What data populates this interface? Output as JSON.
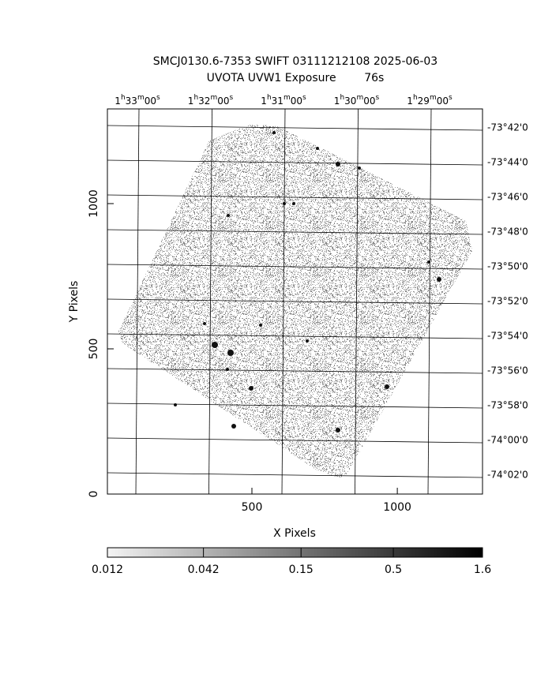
{
  "chart_data": {
    "type": "image",
    "title": "SMCJ0130.6-7353 SWIFT 03111212108 2025-06-03",
    "subtitle": "UVOTA UVW1 Exposure        76s",
    "x_label": "X Pixels",
    "y_label": "Y Pixels",
    "xlim": [
      3,
      1293
    ],
    "ylim": [
      0,
      1326
    ],
    "xticks": [
      500,
      1000
    ],
    "yticks": [
      0,
      500,
      1000
    ],
    "ra_labels": [
      "1h33m00s",
      "1h32m00s",
      "1h31m00s",
      "1h30m00s",
      "1h29m00s"
    ],
    "dec_labels": [
      "-73°42'0",
      "-73°44'0",
      "-73°46'0",
      "-73°48'0",
      "-73°50'0",
      "-73°52'0",
      "-73°54'0",
      "-73°56'0",
      "-73°58'0",
      "-74°00'0",
      "-74°02'0"
    ],
    "colorbar": {
      "lim": [
        0.012,
        1.6
      ],
      "log": true,
      "ticks": [
        0.012,
        0.042,
        0.15,
        0.5,
        1.6
      ]
    }
  }
}
